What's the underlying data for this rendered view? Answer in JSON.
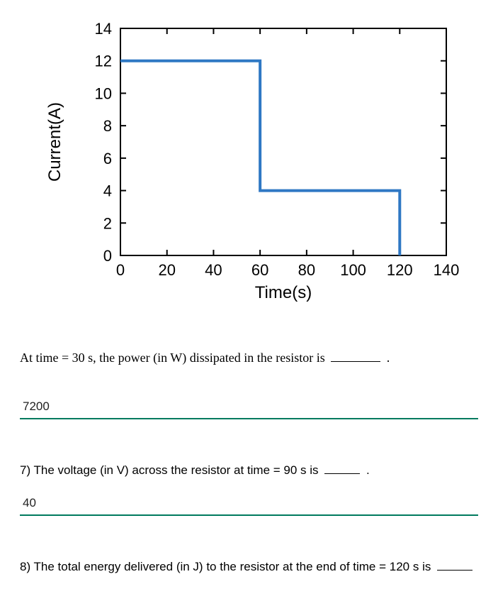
{
  "chart": {
    "type": "line-step",
    "xlabel": "Time(s)",
    "ylabel": "Current(A)",
    "xlim": [
      0,
      140
    ],
    "ylim": [
      0,
      14
    ],
    "xticks": [
      0,
      20,
      40,
      60,
      80,
      100,
      120,
      140
    ],
    "yticks": [
      0,
      2,
      4,
      6,
      8,
      10,
      12,
      14
    ],
    "label_fontsize": 24,
    "tick_fontsize": 22,
    "line_color": "#2f78c4",
    "line_width": 4,
    "axis_color": "#000000",
    "axis_width": 2,
    "background_color": "#ffffff",
    "series": [
      {
        "x": 0,
        "y": 12
      },
      {
        "x": 60,
        "y": 12
      },
      {
        "x": 60,
        "y": 4
      },
      {
        "x": 120,
        "y": 4
      },
      {
        "x": 120,
        "y": 0
      }
    ]
  },
  "q6": {
    "text_pre": "At time = 30 s, the power (in W) dissipated in the resistor is ",
    "text_post": " .",
    "answer": "7200"
  },
  "q7": {
    "text_pre": "7) The voltage (in V) across the resistor at time = 90 s is ",
    "text_post": " .",
    "answer": "40"
  },
  "q8": {
    "text_pre": "8) The total energy delivered (in J) to the resistor at the end of time = 120 s is ",
    "text_post": "",
    "answer": ""
  },
  "answer_underline_color": "#007a5e"
}
